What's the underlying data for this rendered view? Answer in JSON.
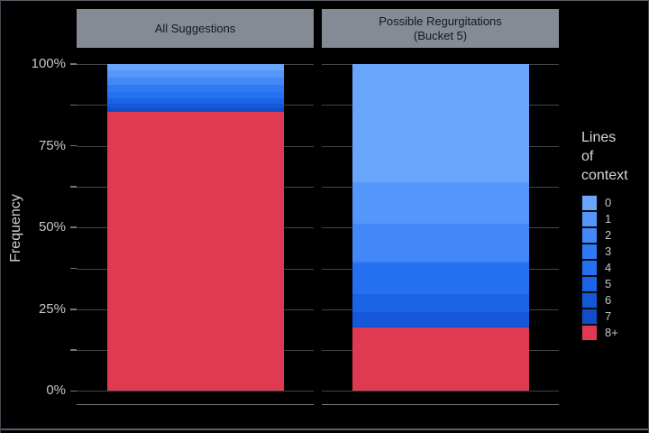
{
  "chart_data": {
    "type": "bar",
    "stacked": true,
    "units": "percent",
    "ylabel": "Frequency",
    "ylim": [
      0,
      100
    ],
    "grid_step": 12.5,
    "yticks": {
      "values": [
        0,
        25,
        50,
        75,
        100
      ],
      "labels": [
        "0%",
        "25%",
        "50%",
        "75%",
        "100%"
      ]
    },
    "categories": [
      "All Suggestions",
      "Possible Regurgitations (Bucket 5)"
    ],
    "facets": [
      {
        "label": "All Suggestions",
        "label_lines": [
          "All Suggestions"
        ]
      },
      {
        "label": "Possible Regurgitations (Bucket 5)",
        "label_lines": [
          "Possible Regurgitations",
          "(Bucket 5)"
        ]
      }
    ],
    "legend": {
      "title": "Lines of context",
      "title_lines": [
        "Lines",
        "of",
        "context"
      ],
      "position": "right"
    },
    "series": [
      {
        "name": "0",
        "color": "#6AA5FC",
        "values": [
          2.0,
          36.2
        ]
      },
      {
        "name": "1",
        "color": "#5596FA",
        "values": [
          2.1,
          12.6
        ]
      },
      {
        "name": "2",
        "color": "#4388F7",
        "values": [
          2.2,
          11.6
        ]
      },
      {
        "name": "3",
        "color": "#2F7AF3",
        "values": [
          2.3,
          0.7
        ]
      },
      {
        "name": "4",
        "color": "#2470F0",
        "values": [
          1.9,
          9.4
        ]
      },
      {
        "name": "5",
        "color": "#1B64E8",
        "values": [
          1.6,
          5.5
        ]
      },
      {
        "name": "6",
        "color": "#1457D8",
        "values": [
          1.4,
          4.4
        ]
      },
      {
        "name": "7",
        "color": "#114DC6",
        "values": [
          1.2,
          0.1
        ]
      },
      {
        "name": "8+",
        "color": "#E03A52",
        "values": [
          85.3,
          19.5
        ]
      }
    ]
  },
  "colors": {
    "background": "#000000",
    "strip_background": "#848B94",
    "strip_text": "#15181C",
    "gridline": "#3F454B",
    "axis_line": "#71777E",
    "tick_label": "#C2C7CC",
    "axis_title": "#C9CED3",
    "legend_title": "#D4D8DC",
    "legend_label": "#C2C7CC"
  }
}
